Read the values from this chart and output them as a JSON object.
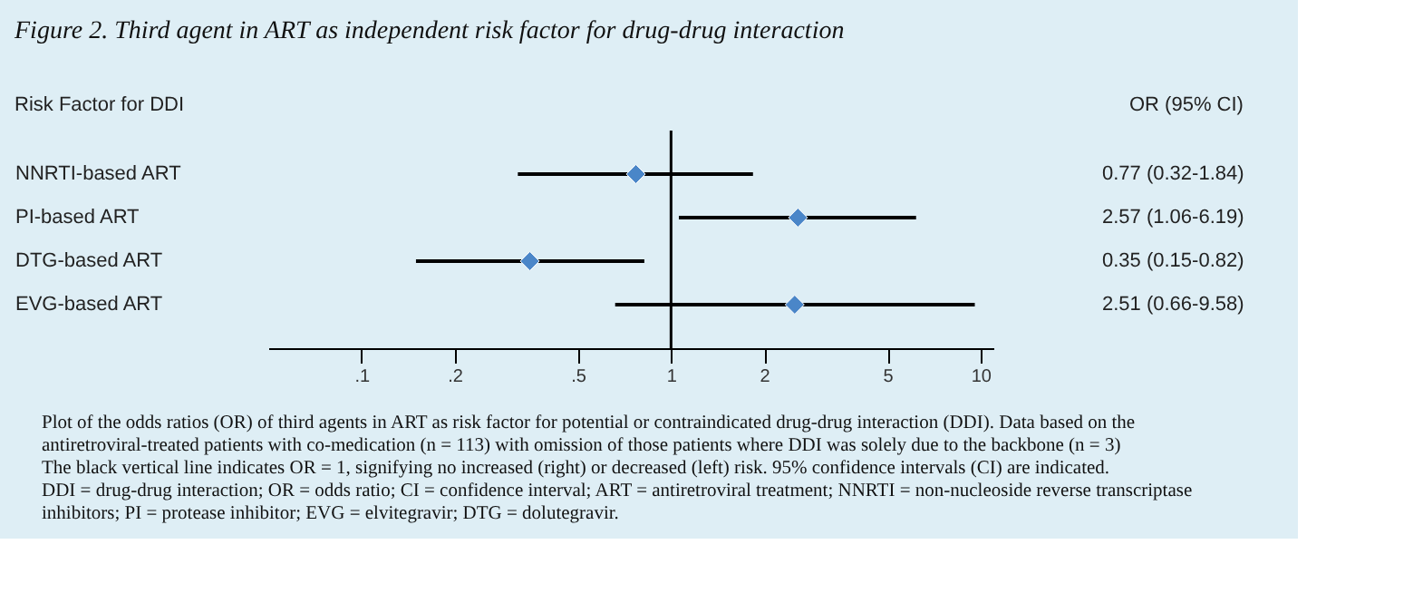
{
  "chart_data": {
    "type": "scatter",
    "title": "Figure 2. Third agent in ART as independent risk factor for drug-drug interaction",
    "categories": [
      "NNRTI-based ART",
      "PI-based ART",
      "DTG-based ART",
      "EVG-based ART"
    ],
    "orientation": "horizontal",
    "series": [
      {
        "color": "#4a86c8",
        "values": [
          0.77,
          2.57,
          0.35,
          2.51
        ],
        "errors": [
          [
            0.32,
            1.84
          ],
          [
            1.06,
            6.19
          ],
          [
            0.15,
            0.82
          ],
          [
            0.66,
            9.58
          ]
        ],
        "value_labels": [
          "0.77 (0.32-1.84)",
          "2.57 (1.06-6.19)",
          "0.35 (0.15-0.82)",
          "2.51 (0.66-9.58)"
        ]
      }
    ],
    "log": "x",
    "xlim": [
      0.05,
      11
    ],
    "xticks": [
      {
        "value": 0.1,
        "label": ".1"
      },
      {
        "value": 0.2,
        "label": ".2"
      },
      {
        "value": 0.5,
        "label": ".5"
      },
      1,
      2,
      5,
      10
    ],
    "ref_lines": [
      {
        "axis": "x",
        "value": 1,
        "color": "#000000"
      }
    ],
    "marker": "diamond",
    "grid": false,
    "legend": false,
    "annotations": [
      "Risk Factor for DDI",
      "OR (95% CI)",
      "Plot of the odds ratios (OR) of third agents in ART as risk factor for potential or contraindicated drug-drug interaction (DDI). Data based on the antiretroviral-treated patients with co-medication (n = 113) with omission of those patients where DDI was solely due to the backbone (n = 3)",
      "The black vertical line indicates OR = 1, signifying no increased (right) or decreased (left) risk. 95% confidence intervals (CI) are indicated.",
      "DDI = drug-drug interaction; OR = odds ratio; CI = confidence interval; ART = antiretroviral treatment; NNRTI = non-nucleoside reverse transcriptase inhibitors; PI = protease inhibitor; EVG = elvitegravir; DTG = dolutegravir."
    ]
  }
}
